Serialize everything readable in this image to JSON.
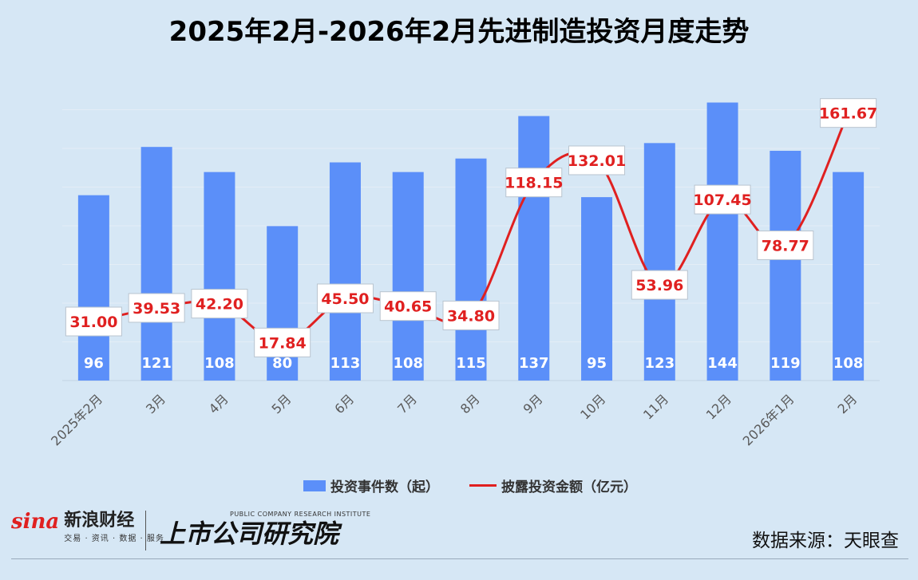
{
  "title": "2025年2月-2026年2月先进制造投资月度走势",
  "chart_data": {
    "type": "bar",
    "categories": [
      "2025年2月",
      "3月",
      "4月",
      "5月",
      "6月",
      "7月",
      "8月",
      "9月",
      "10月",
      "11月",
      "12月",
      "2026年1月",
      "2月"
    ],
    "series": [
      {
        "name": "投资事件数（起）",
        "type": "bar",
        "color": "#5b8ff9",
        "values": [
          96,
          121,
          108,
          80,
          113,
          108,
          115,
          137,
          95,
          123,
          144,
          119,
          108
        ],
        "value_labels": [
          "96",
          "121",
          "108",
          "80",
          "113",
          "108",
          "115",
          "137",
          "95",
          "123",
          "144",
          "119",
          "108"
        ]
      },
      {
        "name": "披露投资金额（亿元）",
        "type": "line",
        "color": "#e02020",
        "values": [
          31.0,
          39.53,
          42.2,
          17.84,
          45.5,
          40.65,
          34.8,
          118.15,
          132.01,
          53.96,
          107.45,
          78.77,
          161.67
        ],
        "value_labels": [
          "31.00",
          "39.53",
          "42.20",
          "17.84",
          "45.50",
          "40.65",
          "34.80",
          "118.15",
          "132.01",
          "53.96",
          "107.45",
          "78.77",
          "161.67"
        ]
      }
    ],
    "legend_position": "bottom-center",
    "grid": true
  },
  "branding": {
    "sina_logo": "sina",
    "sina_name": "新浪财经",
    "sina_sub": "交易 · 资讯 · 数据 · 服务",
    "institute_en": "PUBLIC COMPANY RESEARCH INSTITUTE",
    "institute_cn": "上市公司研究院"
  },
  "source": "数据来源：天眼查"
}
